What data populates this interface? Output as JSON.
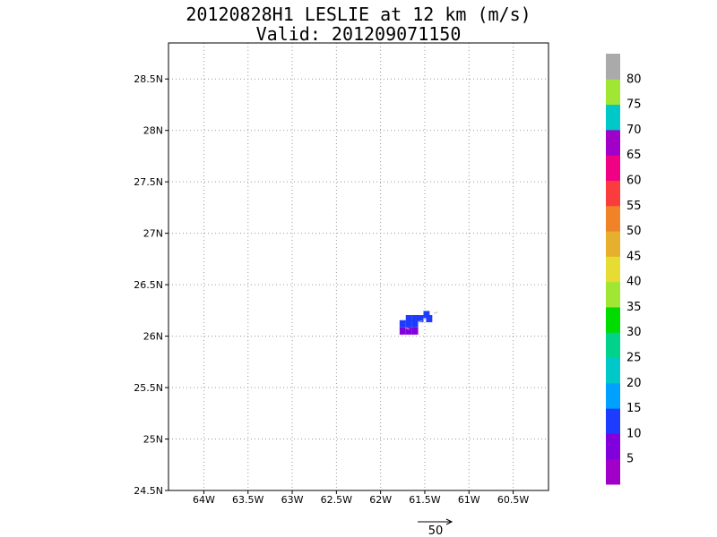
{
  "header": {
    "title_line1": "20120828H1 LESLIE at 12 km (m/s)",
    "title_line2": "Valid: 201209071150"
  },
  "map": {
    "lat_labels": [
      "24.5N",
      "25N",
      "25.5N",
      "26N",
      "26.5N",
      "27N",
      "27.5N",
      "28N",
      "28.5N"
    ],
    "lat_values": [
      24.5,
      25.0,
      25.5,
      26.0,
      26.5,
      27.0,
      27.5,
      28.0,
      28.5
    ],
    "lon_labels": [
      "64W",
      "63.5W",
      "63W",
      "62.5W",
      "62W",
      "61.5W",
      "61W",
      "60.5W"
    ],
    "lon_values": [
      -64.0,
      -63.5,
      -63.0,
      -62.5,
      -62.0,
      -61.5,
      -61.0,
      -60.5
    ],
    "lon_range": [
      -64.4,
      -60.1
    ],
    "lat_range": [
      24.5,
      28.85
    ],
    "grid": true,
    "wind_cells": [
      {
        "lon": -61.75,
        "lat": 26.05,
        "speed": 7
      },
      {
        "lon": -61.68,
        "lat": 26.05,
        "speed": 8
      },
      {
        "lon": -61.61,
        "lat": 26.05,
        "speed": 6
      },
      {
        "lon": -61.75,
        "lat": 26.12,
        "speed": 12
      },
      {
        "lon": -61.68,
        "lat": 26.12,
        "speed": 13
      },
      {
        "lon": -61.61,
        "lat": 26.12,
        "speed": 12
      },
      {
        "lon": -61.68,
        "lat": 26.17,
        "speed": 12
      },
      {
        "lon": -61.61,
        "lat": 26.17,
        "speed": 11
      },
      {
        "lon": -61.55,
        "lat": 26.17,
        "speed": 13
      },
      {
        "lon": -61.48,
        "lat": 26.21,
        "speed": 12
      },
      {
        "lon": -61.45,
        "lat": 26.17,
        "speed": 12
      }
    ],
    "wind_arrows": [
      {
        "lon": -61.72,
        "lat": 26.08,
        "u": 6,
        "v": -2
      },
      {
        "lon": -61.58,
        "lat": 26.14,
        "u": 7,
        "v": 1
      },
      {
        "lon": -61.4,
        "lat": 26.22,
        "u": 6,
        "v": 2
      }
    ]
  },
  "colorbar": {
    "labels": [
      "5",
      "10",
      "15",
      "20",
      "25",
      "30",
      "35",
      "40",
      "45",
      "50",
      "55",
      "60",
      "65",
      "70",
      "75",
      "80"
    ],
    "colors": [
      "#a000c8",
      "#8200dc",
      "#1e3cff",
      "#00a0ff",
      "#00c8c8",
      "#00d28c",
      "#00dc00",
      "#a0e632",
      "#e6dc32",
      "#e6af2d",
      "#f08228",
      "#fa3c3c",
      "#f00082",
      "#a000c8",
      "#00c8c8",
      "#a0e632",
      "#aaaaaa"
    ]
  },
  "scale": {
    "label": "50",
    "value": 50
  }
}
